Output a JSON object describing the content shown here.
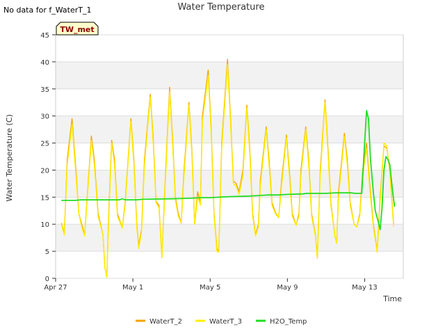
{
  "notice": "No data for f_WaterT_1",
  "chart_data": {
    "type": "line",
    "title": "Water Temperature",
    "xlabel": "Time",
    "ylabel": "Water Temperature (C)",
    "badge": "TW_met",
    "ylim": [
      0,
      45
    ],
    "yticks": [
      0,
      5,
      10,
      15,
      20,
      25,
      30,
      35,
      40,
      45
    ],
    "xlim": [
      "Apr 27",
      "May 15"
    ],
    "xticks": [
      {
        "label": "Apr 27",
        "day": 0
      },
      {
        "label": "May 1",
        "day": 4
      },
      {
        "label": "May 5",
        "day": 8
      },
      {
        "label": "May 9",
        "day": 12
      },
      {
        "label": "May 13",
        "day": 16
      }
    ],
    "grid": true,
    "legend": "bottom",
    "colors": {
      "WaterT_2": "#f5a300",
      "WaterT_3": "#ffee00",
      "H2O_Temp": "#22dd22"
    },
    "series": [
      {
        "name": "WaterT_2",
        "points": [
          [
            0.3,
            10.2
          ],
          [
            0.45,
            8.3
          ],
          [
            0.6,
            22
          ],
          [
            0.85,
            29.5
          ],
          [
            1.05,
            20
          ],
          [
            1.2,
            12
          ],
          [
            1.35,
            10
          ],
          [
            1.5,
            8
          ],
          [
            1.85,
            26.3
          ],
          [
            2.0,
            22
          ],
          [
            2.2,
            12
          ],
          [
            2.45,
            8
          ],
          [
            2.55,
            2
          ],
          [
            2.65,
            0.2
          ],
          [
            2.75,
            12
          ],
          [
            2.9,
            25.5
          ],
          [
            3.05,
            22
          ],
          [
            3.2,
            12
          ],
          [
            3.45,
            9.3
          ],
          [
            3.6,
            14
          ],
          [
            3.9,
            29.5
          ],
          [
            4.05,
            22
          ],
          [
            4.2,
            10
          ],
          [
            4.3,
            6
          ],
          [
            4.45,
            9
          ],
          [
            4.6,
            22
          ],
          [
            4.9,
            34
          ],
          [
            5.05,
            26
          ],
          [
            5.2,
            14.2
          ],
          [
            5.35,
            13.5
          ],
          [
            5.5,
            3.8
          ],
          [
            5.7,
            20
          ],
          [
            5.9,
            35.3
          ],
          [
            6.05,
            26
          ],
          [
            6.2,
            15
          ],
          [
            6.35,
            12
          ],
          [
            6.5,
            10.2
          ],
          [
            6.65,
            20
          ],
          [
            6.9,
            32.5
          ],
          [
            7.05,
            24
          ],
          [
            7.2,
            10
          ],
          [
            7.35,
            16
          ],
          [
            7.5,
            14
          ],
          [
            7.6,
            30
          ],
          [
            7.9,
            38.5
          ],
          [
            8.05,
            28
          ],
          [
            8.2,
            12
          ],
          [
            8.35,
            5.5
          ],
          [
            8.45,
            5
          ],
          [
            8.6,
            25
          ],
          [
            8.9,
            40.5
          ],
          [
            9.05,
            30
          ],
          [
            9.2,
            18
          ],
          [
            9.35,
            17.5
          ],
          [
            9.5,
            16
          ],
          [
            9.7,
            20
          ],
          [
            9.9,
            32
          ],
          [
            10.05,
            24
          ],
          [
            10.2,
            12
          ],
          [
            10.35,
            8
          ],
          [
            10.5,
            10
          ],
          [
            10.6,
            18
          ],
          [
            10.9,
            28
          ],
          [
            11.05,
            22
          ],
          [
            11.2,
            14
          ],
          [
            11.4,
            12
          ],
          [
            11.55,
            11.2
          ],
          [
            11.7,
            18
          ],
          [
            11.95,
            26.5
          ],
          [
            12.1,
            20
          ],
          [
            12.25,
            12
          ],
          [
            12.45,
            9.8
          ],
          [
            12.6,
            12
          ],
          [
            12.7,
            20
          ],
          [
            12.95,
            28
          ],
          [
            13.1,
            22
          ],
          [
            13.25,
            12
          ],
          [
            13.45,
            8
          ],
          [
            13.55,
            3.7
          ],
          [
            13.7,
            20
          ],
          [
            13.95,
            33
          ],
          [
            14.1,
            24
          ],
          [
            14.25,
            14
          ],
          [
            14.45,
            8
          ],
          [
            14.55,
            6.5
          ],
          [
            14.65,
            16
          ],
          [
            14.95,
            26.8
          ],
          [
            15.1,
            22
          ],
          [
            15.25,
            14
          ],
          [
            15.45,
            10
          ],
          [
            15.6,
            9.5
          ],
          [
            15.75,
            12
          ],
          [
            15.9,
            20
          ],
          [
            16.1,
            25
          ],
          [
            16.25,
            18
          ],
          [
            16.45,
            10
          ],
          [
            16.65,
            5
          ],
          [
            16.8,
            15
          ],
          [
            17.0,
            24.5
          ],
          [
            17.15,
            24
          ],
          [
            17.3,
            20
          ],
          [
            17.5,
            10
          ]
        ]
      },
      {
        "name": "WaterT_3",
        "points": [
          [
            0.3,
            10
          ],
          [
            0.45,
            8
          ],
          [
            0.6,
            21
          ],
          [
            0.85,
            28.5
          ],
          [
            1.05,
            19
          ],
          [
            1.2,
            12
          ],
          [
            1.35,
            9.5
          ],
          [
            1.5,
            7.8
          ],
          [
            1.85,
            25.5
          ],
          [
            2.0,
            21
          ],
          [
            2.2,
            11.5
          ],
          [
            2.45,
            8
          ],
          [
            2.55,
            2
          ],
          [
            2.65,
            0.2
          ],
          [
            2.75,
            11
          ],
          [
            2.9,
            25
          ],
          [
            3.05,
            21
          ],
          [
            3.2,
            11.5
          ],
          [
            3.45,
            9.3
          ],
          [
            3.6,
            13.5
          ],
          [
            3.9,
            29
          ],
          [
            4.05,
            21
          ],
          [
            4.2,
            9.5
          ],
          [
            4.3,
            5.5
          ],
          [
            4.45,
            8.5
          ],
          [
            4.6,
            21
          ],
          [
            4.9,
            33.5
          ],
          [
            5.05,
            25
          ],
          [
            5.2,
            14
          ],
          [
            5.35,
            13
          ],
          [
            5.5,
            3.8
          ],
          [
            5.7,
            19
          ],
          [
            5.9,
            34.5
          ],
          [
            6.05,
            25
          ],
          [
            6.2,
            14.5
          ],
          [
            6.35,
            11.5
          ],
          [
            6.5,
            10.2
          ],
          [
            6.65,
            19
          ],
          [
            6.9,
            32
          ],
          [
            7.05,
            23
          ],
          [
            7.2,
            10
          ],
          [
            7.35,
            15
          ],
          [
            7.5,
            13.5
          ],
          [
            7.6,
            29
          ],
          [
            7.9,
            37.5
          ],
          [
            8.05,
            27
          ],
          [
            8.2,
            11.5
          ],
          [
            8.35,
            5
          ],
          [
            8.45,
            4.8
          ],
          [
            8.6,
            24
          ],
          [
            8.9,
            39.5
          ],
          [
            9.05,
            29
          ],
          [
            9.2,
            17.5
          ],
          [
            9.35,
            17
          ],
          [
            9.5,
            15.5
          ],
          [
            9.7,
            19
          ],
          [
            9.9,
            31.5
          ],
          [
            10.05,
            23
          ],
          [
            10.2,
            11.5
          ],
          [
            10.35,
            7.8
          ],
          [
            10.5,
            9.5
          ],
          [
            10.6,
            17
          ],
          [
            10.9,
            27.5
          ],
          [
            11.05,
            21
          ],
          [
            11.2,
            13.5
          ],
          [
            11.4,
            11.8
          ],
          [
            11.55,
            11.2
          ],
          [
            11.7,
            17
          ],
          [
            11.95,
            26
          ],
          [
            12.1,
            19
          ],
          [
            12.25,
            11.5
          ],
          [
            12.45,
            9.8
          ],
          [
            12.6,
            11.5
          ],
          [
            12.7,
            19
          ],
          [
            12.95,
            27.5
          ],
          [
            13.1,
            21
          ],
          [
            13.25,
            11.5
          ],
          [
            13.45,
            7.8
          ],
          [
            13.55,
            3.7
          ],
          [
            13.7,
            19
          ],
          [
            13.95,
            32.5
          ],
          [
            14.1,
            23
          ],
          [
            14.25,
            13.5
          ],
          [
            14.45,
            8
          ],
          [
            14.55,
            6.5
          ],
          [
            14.65,
            15
          ],
          [
            14.95,
            26.2
          ],
          [
            15.1,
            21
          ],
          [
            15.25,
            13.5
          ],
          [
            15.45,
            10
          ],
          [
            15.6,
            9.5
          ],
          [
            15.75,
            11.5
          ],
          [
            15.9,
            19
          ],
          [
            16.1,
            24
          ],
          [
            16.25,
            17
          ],
          [
            16.45,
            9.5
          ],
          [
            16.65,
            4.8
          ],
          [
            16.8,
            14
          ],
          [
            17.0,
            25
          ],
          [
            17.15,
            24.5
          ],
          [
            17.3,
            19.5
          ],
          [
            17.5,
            9.5
          ]
        ]
      },
      {
        "name": "H2O_Temp",
        "points": [
          [
            0.3,
            14.4
          ],
          [
            1.0,
            14.4
          ],
          [
            1.3,
            14.5
          ],
          [
            2.5,
            14.5
          ],
          [
            3.3,
            14.5
          ],
          [
            3.45,
            14.7
          ],
          [
            3.6,
            14.5
          ],
          [
            4.2,
            14.5
          ],
          [
            4.5,
            14.6
          ],
          [
            6.0,
            14.7
          ],
          [
            7.0,
            14.8
          ],
          [
            7.5,
            14.9
          ],
          [
            8.0,
            14.9
          ],
          [
            8.5,
            15.0
          ],
          [
            9.0,
            15.1
          ],
          [
            10.0,
            15.2
          ],
          [
            10.5,
            15.3
          ],
          [
            11.0,
            15.4
          ],
          [
            11.5,
            15.4
          ],
          [
            12.0,
            15.5
          ],
          [
            12.8,
            15.6
          ],
          [
            13.0,
            15.7
          ],
          [
            14.0,
            15.7
          ],
          [
            14.5,
            15.8
          ],
          [
            15.3,
            15.8
          ],
          [
            15.5,
            15.7
          ],
          [
            15.85,
            15.7
          ],
          [
            16.0,
            25
          ],
          [
            16.1,
            31
          ],
          [
            16.2,
            29.5
          ],
          [
            16.3,
            22
          ],
          [
            16.45,
            16
          ],
          [
            16.55,
            12.5
          ],
          [
            16.7,
            10.5
          ],
          [
            16.8,
            9
          ],
          [
            16.9,
            13
          ],
          [
            17.0,
            20
          ],
          [
            17.1,
            22.5
          ],
          [
            17.2,
            22
          ],
          [
            17.3,
            21
          ],
          [
            17.45,
            16
          ],
          [
            17.55,
            13.2
          ]
        ]
      }
    ]
  }
}
